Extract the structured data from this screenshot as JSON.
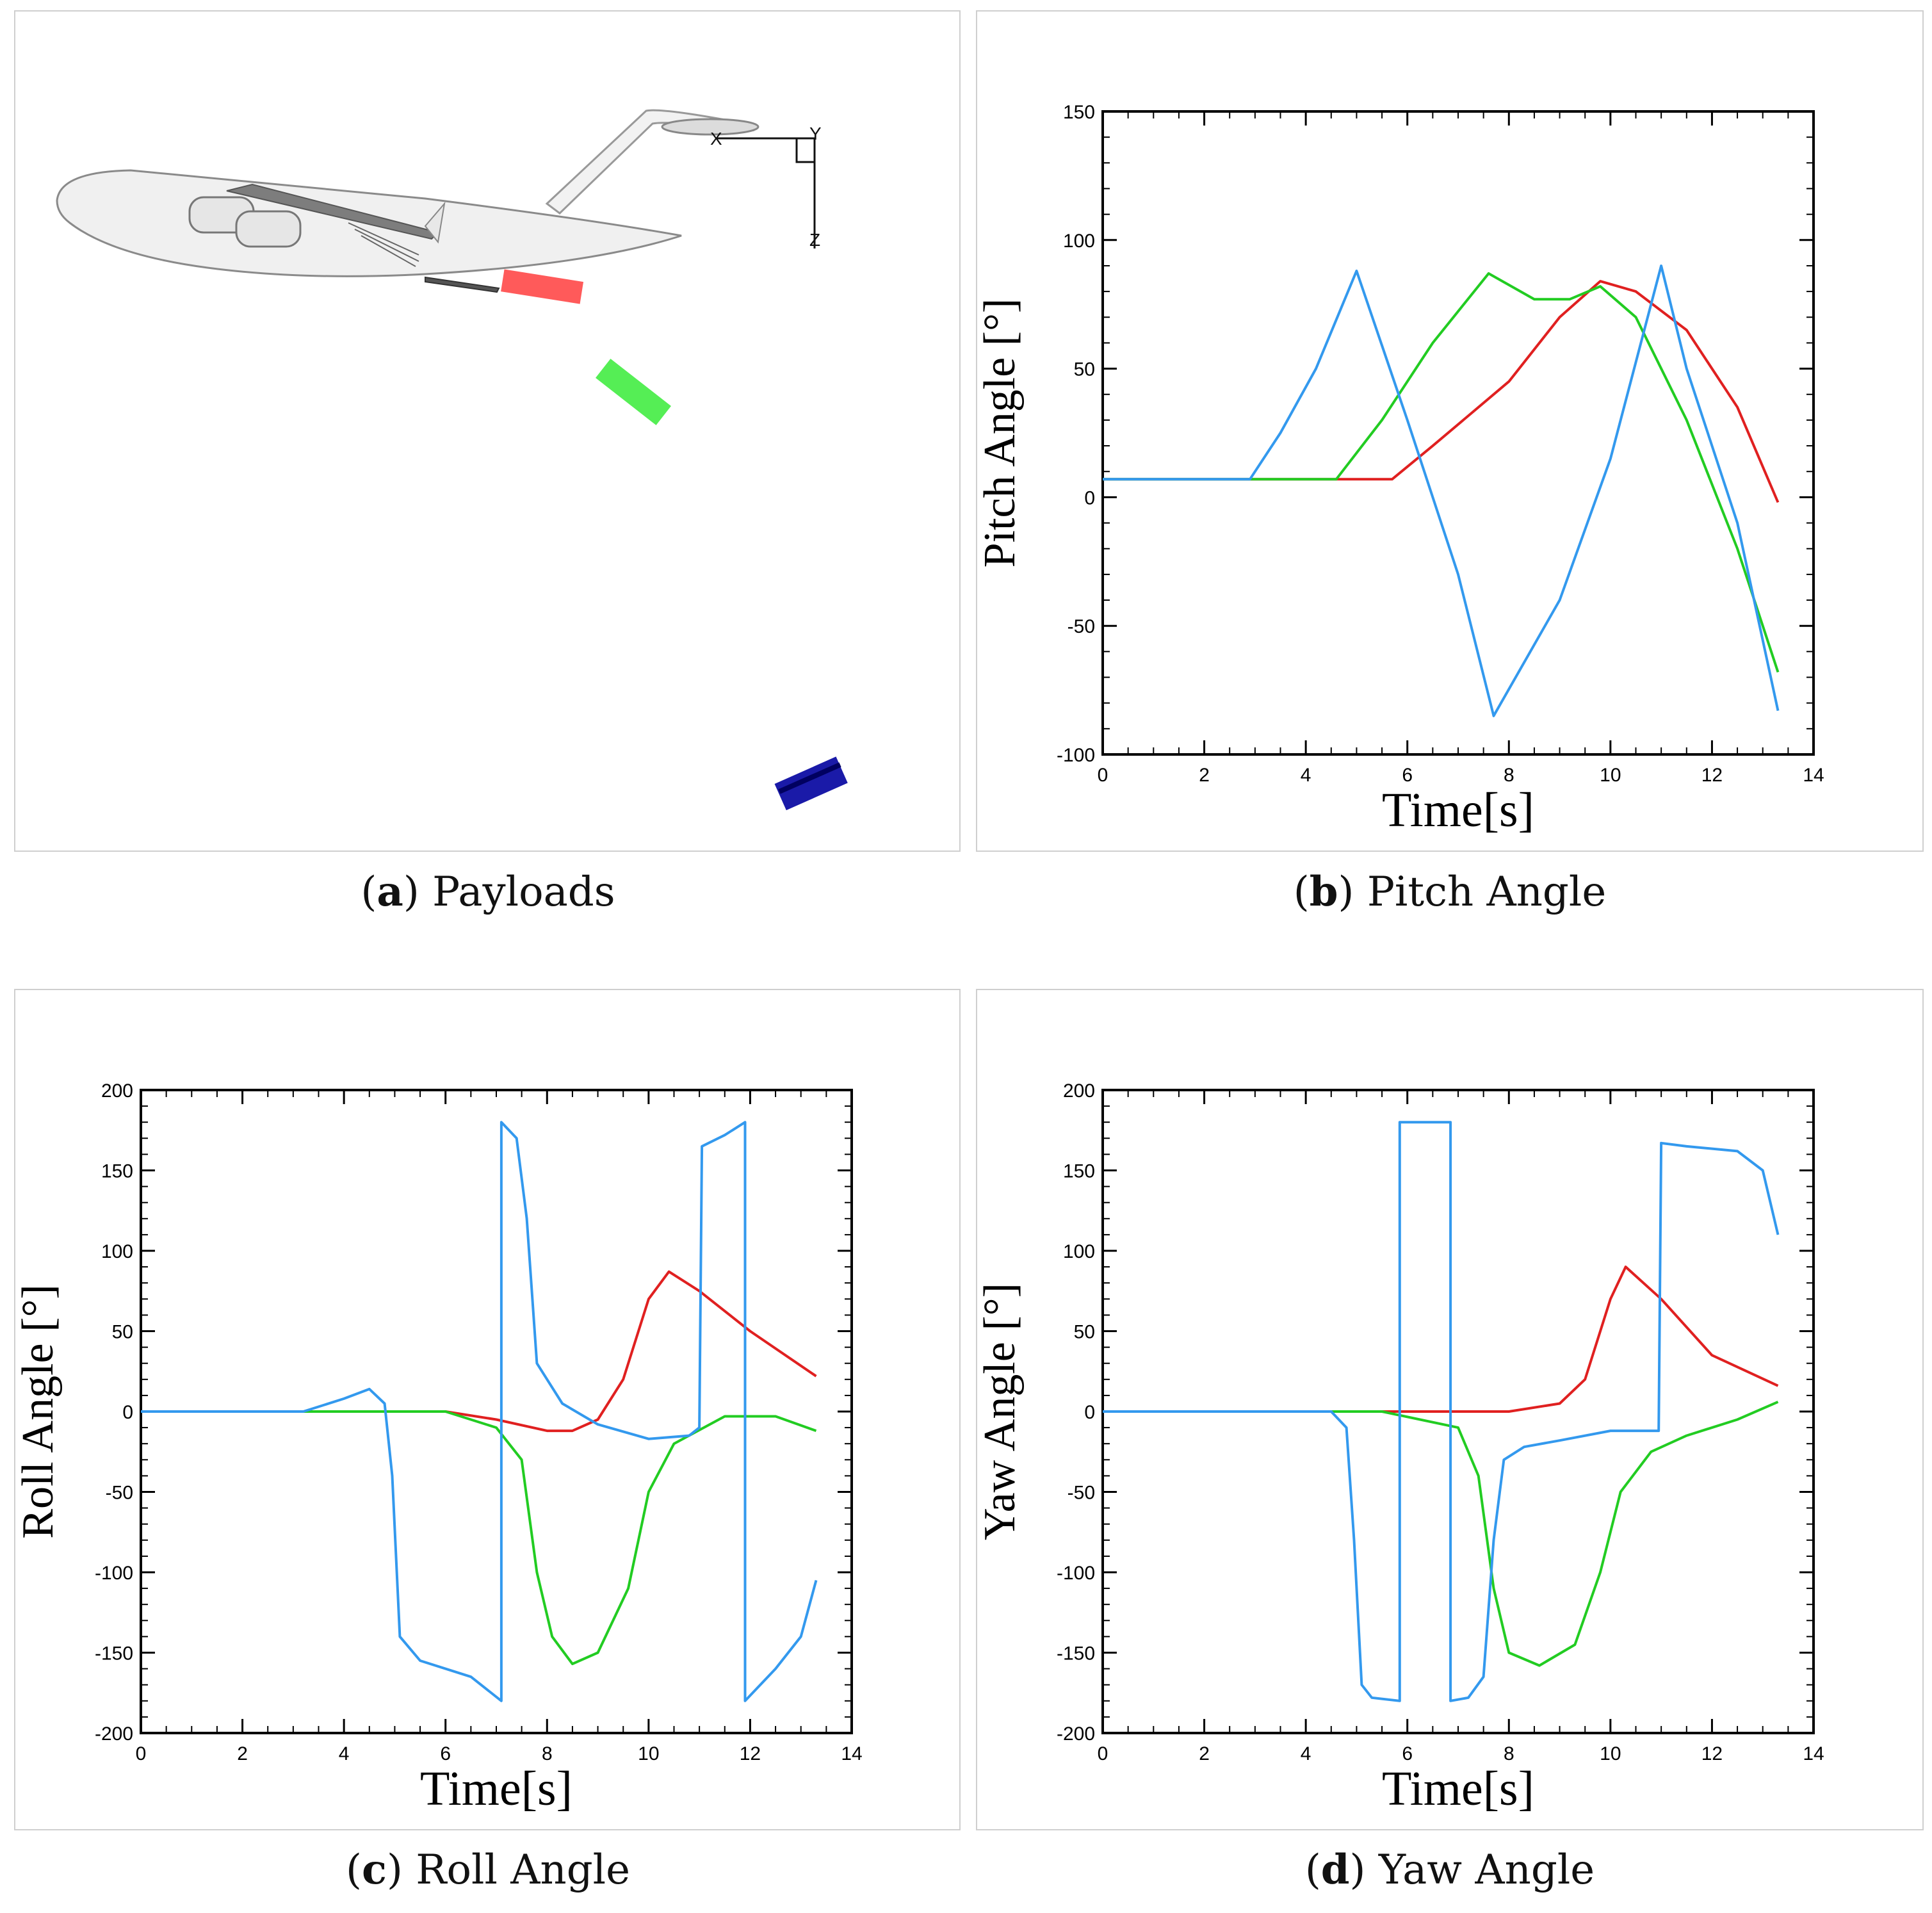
{
  "figure": {
    "captions": [
      {
        "letter": "a",
        "text": "Payloads"
      },
      {
        "letter": "b",
        "text": "Pitch Angle"
      },
      {
        "letter": "c",
        "text": "Roll Angle"
      },
      {
        "letter": "d",
        "text": "Yaw Angle"
      }
    ],
    "axis_triad": {
      "x": "X",
      "y": "Y",
      "z": "Z"
    },
    "payload_colors": [
      "#ff5a5a",
      "#55ee55",
      "#1a1aa8"
    ]
  },
  "chart_data": [
    {
      "id": "pitch",
      "type": "line",
      "title": "",
      "xlabel": "Time[s]",
      "ylabel": "Pitch Angle [°]",
      "xlim": [
        0,
        14
      ],
      "ylim": [
        -100,
        150
      ],
      "xticks": [
        0,
        2,
        4,
        6,
        8,
        10,
        12,
        14
      ],
      "yticks": [
        -100,
        -50,
        0,
        50,
        100,
        150
      ],
      "series": [
        {
          "name": "red",
          "color": "#e02020",
          "x": [
            0,
            5.7,
            6.5,
            8,
            9,
            9.8,
            10.5,
            11.5,
            12.5,
            13.3
          ],
          "y": [
            7,
            7,
            20,
            45,
            70,
            84,
            80,
            65,
            35,
            -2
          ]
        },
        {
          "name": "green",
          "color": "#22cc22",
          "x": [
            0,
            4.6,
            5.5,
            6.5,
            7.6,
            8.5,
            9.2,
            9.8,
            10.5,
            11.5,
            12.5,
            13.3
          ],
          "y": [
            7,
            7,
            30,
            60,
            87,
            77,
            77,
            82,
            70,
            30,
            -20,
            -68
          ]
        },
        {
          "name": "blue",
          "color": "#3399ee",
          "x": [
            0,
            2.9,
            3.5,
            4.2,
            5.0,
            6.0,
            7.0,
            7.7,
            9.0,
            10.0,
            11.0,
            11.5,
            12.5,
            13.3
          ],
          "y": [
            7,
            7,
            25,
            50,
            88,
            30,
            -30,
            -85,
            -40,
            15,
            90,
            50,
            -10,
            -83
          ]
        }
      ]
    },
    {
      "id": "roll",
      "type": "line",
      "title": "",
      "xlabel": "Time[s]",
      "ylabel": "Roll Angle [°]",
      "xlim": [
        0,
        14
      ],
      "ylim": [
        -200,
        200
      ],
      "xticks": [
        0,
        2,
        4,
        6,
        8,
        10,
        12,
        14
      ],
      "yticks": [
        -200,
        -150,
        -100,
        -50,
        0,
        50,
        100,
        150,
        200
      ],
      "series": [
        {
          "name": "red",
          "color": "#e02020",
          "x": [
            0,
            5.0,
            6.0,
            7.0,
            8.0,
            8.5,
            9.0,
            9.5,
            10.0,
            10.4,
            11.0,
            12.0,
            13.3
          ],
          "y": [
            0,
            0,
            0,
            -5,
            -12,
            -12,
            -5,
            20,
            70,
            87,
            75,
            50,
            22
          ]
        },
        {
          "name": "green",
          "color": "#22cc22",
          "x": [
            0,
            4.6,
            6.0,
            7.0,
            7.5,
            7.8,
            8.1,
            8.5,
            9.0,
            9.6,
            10.0,
            10.5,
            11.5,
            12.5,
            13.3
          ],
          "y": [
            0,
            0,
            0,
            -10,
            -30,
            -100,
            -140,
            -157,
            -150,
            -110,
            -50,
            -20,
            -3,
            -3,
            -12
          ]
        },
        {
          "name": "blue",
          "color": "#3399ee",
          "x": [
            0,
            3.2,
            4.0,
            4.5,
            4.8,
            4.95,
            5.1,
            5.5,
            6.5,
            7.1,
            7.1,
            7.4,
            7.6,
            7.8,
            8.3,
            9.0,
            10.0,
            10.8,
            11.0,
            11.05,
            11.5,
            11.9,
            11.9,
            12.5,
            13.0,
            13.3
          ],
          "y": [
            0,
            0,
            8,
            14,
            5,
            -40,
            -140,
            -155,
            -165,
            -180,
            180,
            170,
            120,
            30,
            5,
            -8,
            -17,
            -15,
            -10,
            165,
            172,
            180,
            -180,
            -160,
            -140,
            -105
          ]
        }
      ]
    },
    {
      "id": "yaw",
      "type": "line",
      "title": "",
      "xlabel": "Time[s]",
      "ylabel": "Yaw Angle [°]",
      "xlim": [
        0,
        14
      ],
      "ylim": [
        -200,
        200
      ],
      "xticks": [
        0,
        2,
        4,
        6,
        8,
        10,
        12,
        14
      ],
      "yticks": [
        -200,
        -150,
        -100,
        -50,
        0,
        50,
        100,
        150,
        200
      ],
      "series": [
        {
          "name": "red",
          "color": "#e02020",
          "x": [
            0,
            6.0,
            8.0,
            9.0,
            9.5,
            10.0,
            10.3,
            11.0,
            12.0,
            13.3
          ],
          "y": [
            0,
            0,
            0,
            5,
            20,
            70,
            90,
            70,
            35,
            16
          ]
        },
        {
          "name": "green",
          "color": "#22cc22",
          "x": [
            0,
            5.5,
            7.0,
            7.4,
            7.7,
            8.0,
            8.6,
            9.3,
            9.8,
            10.2,
            10.8,
            11.5,
            12.5,
            13.3
          ],
          "y": [
            0,
            0,
            -10,
            -40,
            -110,
            -150,
            -158,
            -145,
            -100,
            -50,
            -25,
            -15,
            -5,
            6
          ]
        },
        {
          "name": "blue",
          "color": "#3399ee",
          "x": [
            0,
            3.5,
            4.5,
            4.8,
            4.95,
            5.1,
            5.3,
            5.85,
            5.85,
            6.85,
            6.85,
            7.2,
            7.5,
            7.7,
            7.9,
            8.3,
            9.0,
            10.0,
            10.95,
            11.0,
            11.5,
            12.5,
            13.0,
            13.3
          ],
          "y": [
            0,
            0,
            0,
            -10,
            -80,
            -170,
            -178,
            -180,
            180,
            180,
            -180,
            -178,
            -165,
            -80,
            -30,
            -22,
            -18,
            -12,
            -12,
            167,
            165,
            162,
            150,
            110
          ]
        }
      ]
    }
  ]
}
